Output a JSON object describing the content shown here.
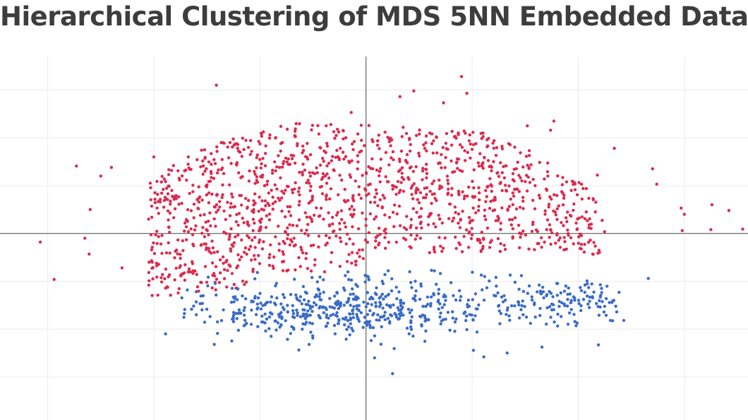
{
  "chart_data": {
    "type": "scatter",
    "title": "Hierarchical Clustering of MDS 5NN Embedded Data",
    "xlabel": "",
    "ylabel": "",
    "xlim": [
      -3.45,
      3.6
    ],
    "ylim": [
      -3.9,
      3.7
    ],
    "zero_lines": true,
    "grid": true,
    "legend": "none",
    "series": [
      {
        "color": "#dc2a4e",
        "generator": {
          "seed": 12345,
          "count": 1350
        },
        "points": [
          [
            0.0,
            0.0
          ]
        ],
        "outliers": [
          [
            -1.41,
            3.1
          ],
          [
            0.9,
            3.28
          ],
          [
            0.95,
            2.93
          ],
          [
            0.32,
            2.86
          ],
          [
            0.45,
            2.98
          ],
          [
            -2.73,
            1.41
          ],
          [
            -2.5,
            1.2
          ],
          [
            -2.4,
            1.38
          ],
          [
            -3.07,
            -0.18
          ],
          [
            -2.94,
            -0.96
          ],
          [
            -2.61,
            -0.43
          ],
          [
            -2.3,
            -0.72
          ],
          [
            -2.6,
            0.5
          ],
          [
            -2.65,
            -0.1
          ],
          [
            2.34,
            1.78
          ],
          [
            2.74,
            1.03
          ],
          [
            2.97,
            0.53
          ],
          [
            2.98,
            0.06
          ],
          [
            3.0,
            0.4
          ],
          [
            3.26,
            0.6
          ],
          [
            3.42,
            0.48
          ],
          [
            3.25,
            0.08
          ],
          [
            3.55,
            0.09
          ],
          [
            0.73,
            2.73
          ],
          [
            -0.14,
            2.53
          ],
          [
            1.52,
            2.25
          ],
          [
            1.77,
            2.35
          ],
          [
            1.74,
            2.16
          ],
          [
            2.18,
            1.22
          ],
          [
            -1.55,
            1.74
          ],
          [
            -2.0,
            1.6
          ],
          [
            2.7,
            1.35
          ]
        ]
      },
      {
        "color": "#3a6bc9",
        "generator": {
          "seed": 67890,
          "count": 640
        },
        "points": [
          [
            0.0,
            0.0
          ]
        ],
        "outliers": [
          [
            0.08,
            -2.6
          ],
          [
            0.25,
            -2.93
          ],
          [
            1.11,
            -2.58
          ],
          [
            1.33,
            -2.5
          ],
          [
            -1.43,
            -2.32
          ],
          [
            2.19,
            -2.33
          ],
          [
            -1.89,
            -2.1
          ],
          [
            -1.4,
            -2.09
          ],
          [
            -1.6,
            -1.7
          ],
          [
            2.66,
            -0.94
          ],
          [
            2.05,
            -1.38
          ],
          [
            0.95,
            -2.01
          ],
          [
            1.55,
            -1.88
          ],
          [
            2.02,
            -1.13
          ],
          [
            1.9,
            -1.38
          ]
        ]
      }
    ]
  }
}
